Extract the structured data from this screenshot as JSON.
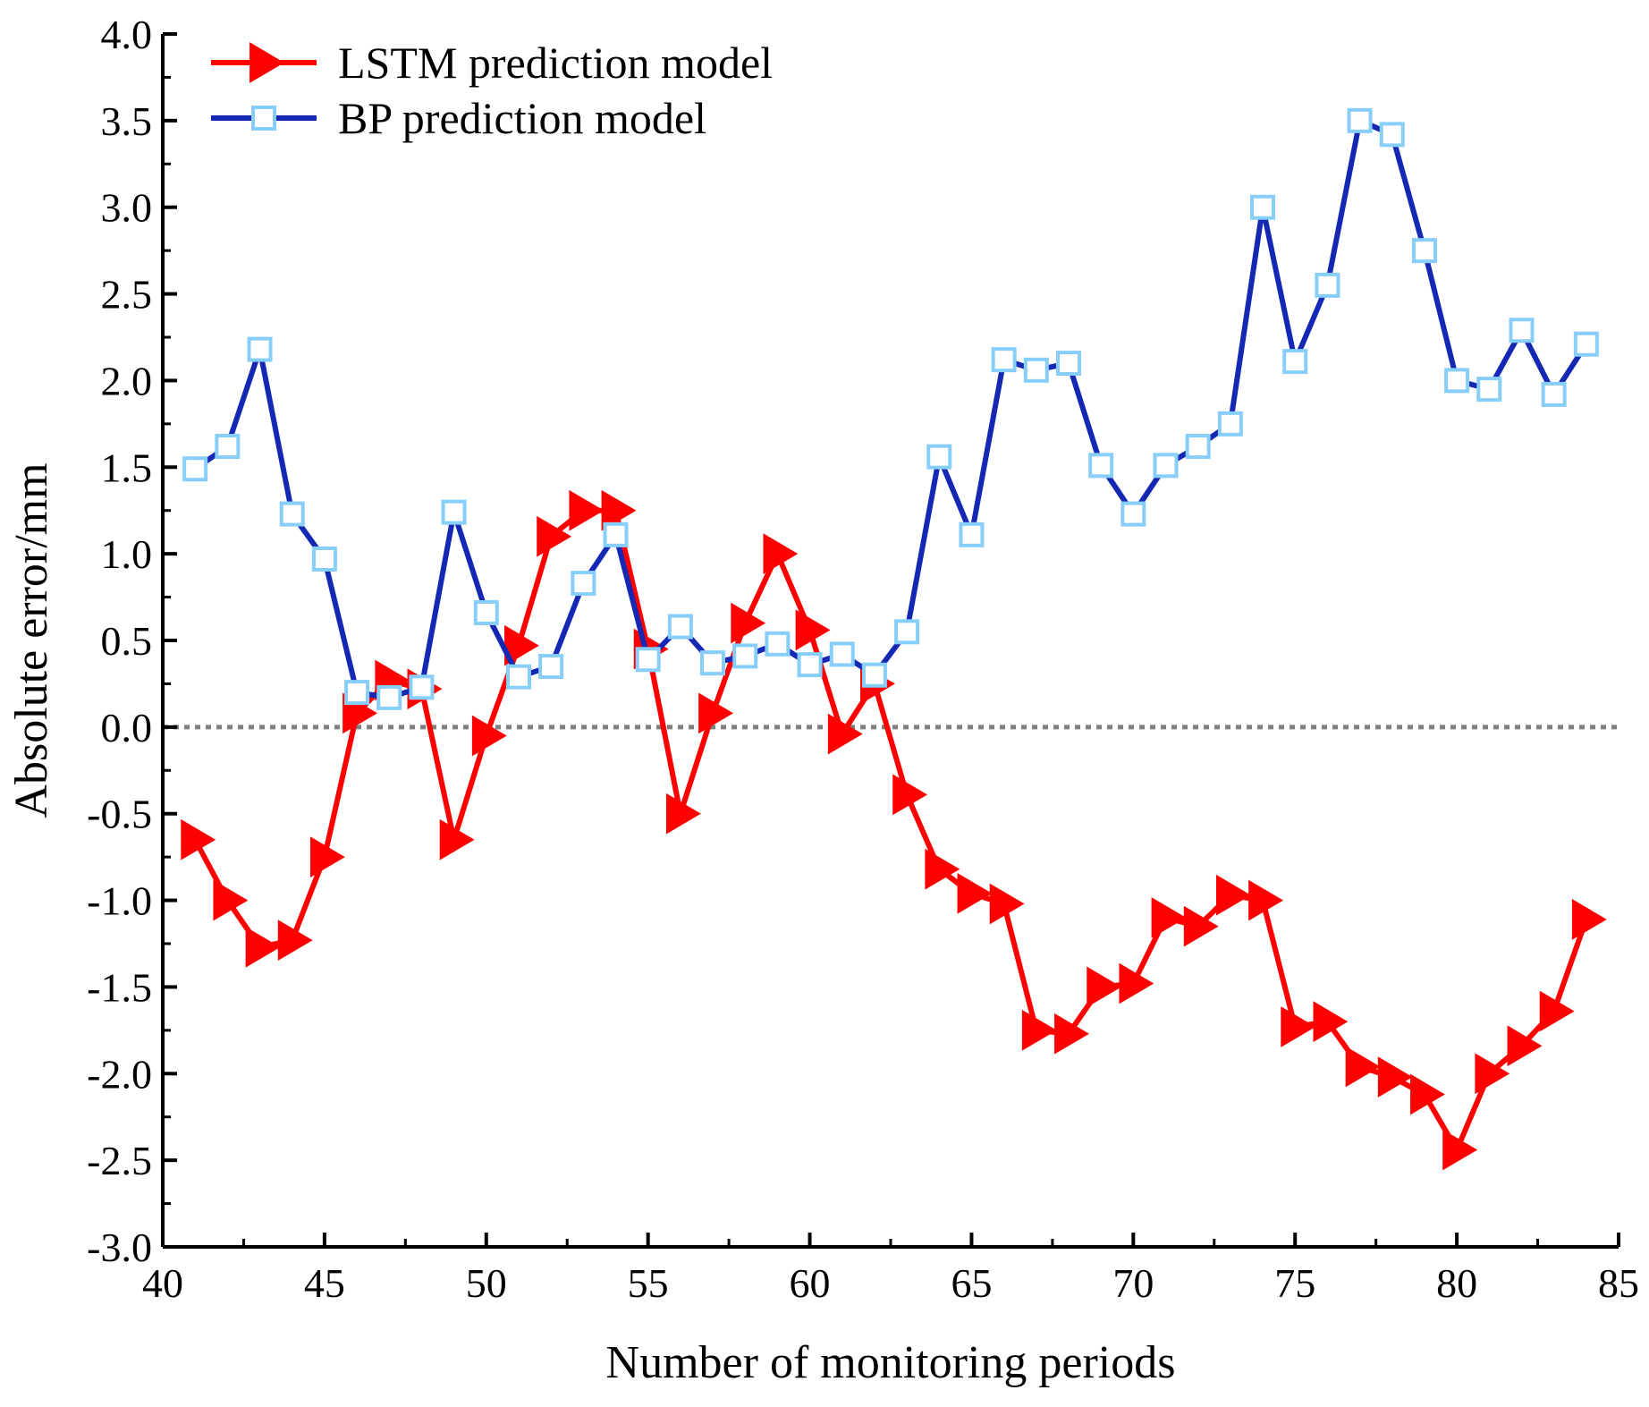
{
  "chart_data": {
    "type": "line",
    "title": "",
    "xlabel": "Number of monitoring periods",
    "ylabel": "Absolute error/mm",
    "xlim": [
      40,
      85
    ],
    "ylim": [
      -3.0,
      4.0
    ],
    "xticks": [
      40,
      45,
      50,
      55,
      60,
      65,
      70,
      75,
      80,
      85
    ],
    "yticks": [
      -3.0,
      -2.5,
      -2.0,
      -1.5,
      -1.0,
      -0.5,
      0.0,
      0.5,
      1.0,
      1.5,
      2.0,
      2.5,
      3.0,
      3.5,
      4.0
    ],
    "xtick_labels": [
      "40",
      "45",
      "50",
      "55",
      "60",
      "65",
      "70",
      "75",
      "80",
      "85"
    ],
    "ytick_labels": [
      "-3.0",
      "-2.5",
      "-2.0",
      "-1.5",
      "-1.0",
      "-0.5",
      "0.0",
      "0.5",
      "1.0",
      "1.5",
      "2.0",
      "2.5",
      "3.0",
      "3.5",
      "4.0"
    ],
    "reference_line": {
      "y": 0.0,
      "style": "dotted",
      "color": "#7f7f7f"
    },
    "legend_position": "top-left",
    "x": [
      41,
      42,
      43,
      44,
      45,
      46,
      47,
      48,
      49,
      50,
      51,
      52,
      53,
      54,
      55,
      56,
      57,
      58,
      59,
      60,
      61,
      62,
      63,
      64,
      65,
      66,
      67,
      68,
      69,
      70,
      71,
      72,
      73,
      74,
      75,
      76,
      77,
      78,
      79,
      80,
      81,
      82,
      83,
      84
    ],
    "series": [
      {
        "name": "LSTM prediction model",
        "color": "#ff0000",
        "marker": "right-triangle",
        "values": [
          -0.65,
          -1.0,
          -1.27,
          -1.23,
          -0.75,
          0.08,
          0.27,
          0.22,
          -0.65,
          -0.05,
          0.47,
          1.1,
          1.25,
          1.25,
          0.45,
          -0.5,
          0.08,
          0.6,
          1.0,
          0.56,
          -0.04,
          0.25,
          -0.39,
          -0.82,
          -0.96,
          -1.02,
          -1.75,
          -1.77,
          -1.5,
          -1.48,
          -1.1,
          -1.15,
          -0.97,
          -1.0,
          -1.73,
          -1.7,
          -1.96,
          -2.02,
          -2.12,
          -2.44,
          -2.0,
          -1.84,
          -1.64,
          -1.11
        ]
      },
      {
        "name": "BP prediction model",
        "color": "#1428b4",
        "marker": "open-square",
        "marker_color": "#87cefa",
        "values": [
          1.49,
          1.62,
          2.18,
          1.23,
          0.97,
          0.2,
          0.17,
          0.23,
          1.24,
          0.66,
          0.29,
          0.35,
          0.83,
          1.11,
          0.39,
          0.58,
          0.37,
          0.41,
          0.48,
          0.36,
          0.42,
          0.3,
          0.55,
          1.56,
          1.11,
          2.12,
          2.06,
          2.1,
          1.51,
          1.23,
          1.51,
          1.62,
          1.75,
          3.0,
          2.11,
          2.55,
          3.5,
          3.42,
          2.75,
          2.0,
          1.95,
          2.29,
          1.92,
          2.21
        ]
      }
    ]
  }
}
